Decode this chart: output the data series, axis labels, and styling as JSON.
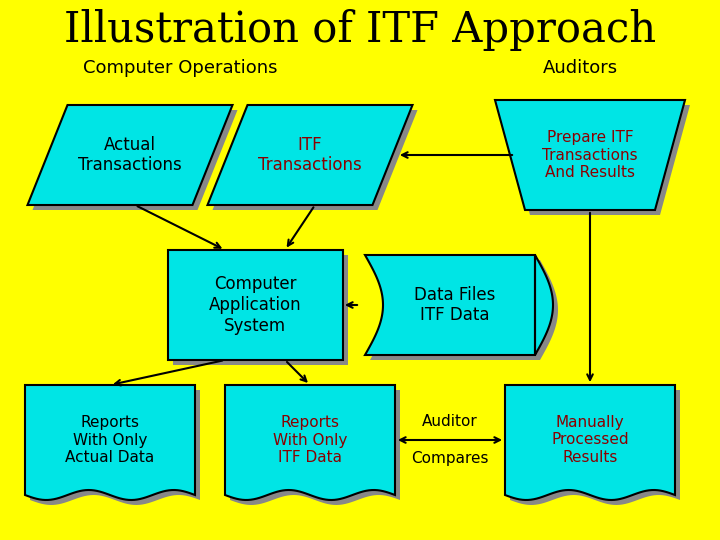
{
  "bg_color": "#FFFF00",
  "title": "Illustration of ITF Approach",
  "title_fontsize": 30,
  "title_color": "#000000",
  "subtitle_left": "Computer Operations",
  "subtitle_right": "Auditors",
  "subtitle_fontsize": 13,
  "cyan": "#00E5E5",
  "shadow_color": "#888888",
  "black": "#000000",
  "dark_red": "#8B0000"
}
